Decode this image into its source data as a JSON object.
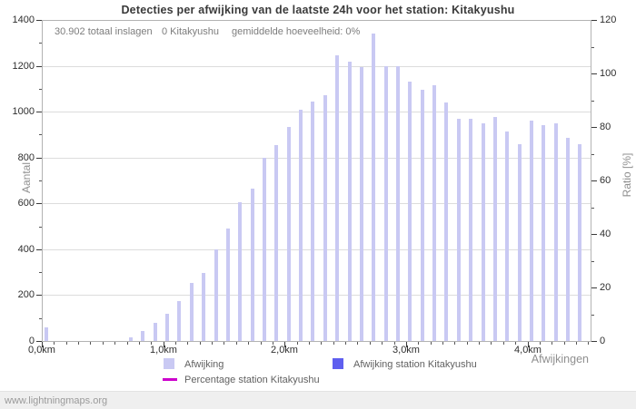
{
  "watermark": "www.lightningmaps.org",
  "chart_data": {
    "type": "bar",
    "title": "Detecties per afwijking van de laatste 24h voor het station: Kitakyushu",
    "info": {
      "total": "30.902 totaal inslagen",
      "station": "0 Kitakyushu",
      "average": "gemiddelde hoeveelheid: 0%"
    },
    "xlabel": "Afwijkingen",
    "ylabel_left": "Aantal",
    "ylabel_right": "Ratio [%]",
    "xlim_km": [
      0,
      4.52
    ],
    "ylim_left": [
      0,
      1400
    ],
    "ylim_right": [
      0,
      120
    ],
    "y_left_ticks": [
      0,
      200,
      400,
      600,
      800,
      1000,
      1200,
      1400
    ],
    "y_left_minor_step": 100,
    "y_right_ticks": [
      0,
      20,
      40,
      60,
      80,
      100,
      120
    ],
    "y_right_minor_step": 10,
    "x_major_ticks_km": [
      0,
      1,
      2,
      3,
      4
    ],
    "x_major_tick_labels": [
      "0,0km",
      "1,0km",
      "2,0km",
      "3,0km",
      "4,0km"
    ],
    "x_minor_tick_step_km": 0.1,
    "grid": "horizontal",
    "legend_position": "bottom",
    "distances_km": [
      0.0,
      0.1,
      0.2,
      0.3,
      0.4,
      0.5,
      0.6,
      0.7,
      0.8,
      0.9,
      1.0,
      1.1,
      1.2,
      1.3,
      1.4,
      1.5,
      1.6,
      1.7,
      1.8,
      1.9,
      2.0,
      2.1,
      2.2,
      2.3,
      2.4,
      2.5,
      2.6,
      2.7,
      2.8,
      2.9,
      3.0,
      3.1,
      3.2,
      3.3,
      3.4,
      3.5,
      3.6,
      3.7,
      3.8,
      3.9,
      4.0,
      4.1,
      4.2,
      4.3,
      4.4
    ],
    "series": [
      {
        "name": "Afwijking",
        "type": "bar",
        "axis": "left",
        "color": "#c9c9f3",
        "values": [
          60,
          0,
          0,
          0,
          0,
          0,
          0,
          15,
          45,
          80,
          120,
          175,
          255,
          295,
          400,
          490,
          605,
          665,
          800,
          855,
          935,
          1010,
          1045,
          1070,
          1245,
          1220,
          1195,
          1340,
          1200,
          1200,
          1130,
          1095,
          1115,
          1040,
          970,
          970,
          950,
          975,
          915,
          860,
          960,
          940,
          950,
          885,
          860
        ]
      },
      {
        "name": "Afwijking station Kitakyushu",
        "type": "bar",
        "axis": "left",
        "color": "#5f5fef",
        "values": [
          0,
          0,
          0,
          0,
          0,
          0,
          0,
          0,
          0,
          0,
          0,
          0,
          0,
          0,
          0,
          0,
          0,
          0,
          0,
          0,
          0,
          0,
          0,
          0,
          0,
          0,
          0,
          0,
          0,
          0,
          0,
          0,
          0,
          0,
          0,
          0,
          0,
          0,
          0,
          0,
          0,
          0,
          0,
          0,
          0
        ]
      },
      {
        "name": "Percentage station Kitakyushu",
        "type": "line",
        "axis": "right",
        "color": "#cc00cc",
        "values": [
          0,
          0,
          0,
          0,
          0,
          0,
          0,
          0,
          0,
          0,
          0,
          0,
          0,
          0,
          0,
          0,
          0,
          0,
          0,
          0,
          0,
          0,
          0,
          0,
          0,
          0,
          0,
          0,
          0,
          0,
          0,
          0,
          0,
          0,
          0,
          0,
          0,
          0,
          0,
          0,
          0,
          0,
          0,
          0,
          0
        ]
      }
    ]
  }
}
